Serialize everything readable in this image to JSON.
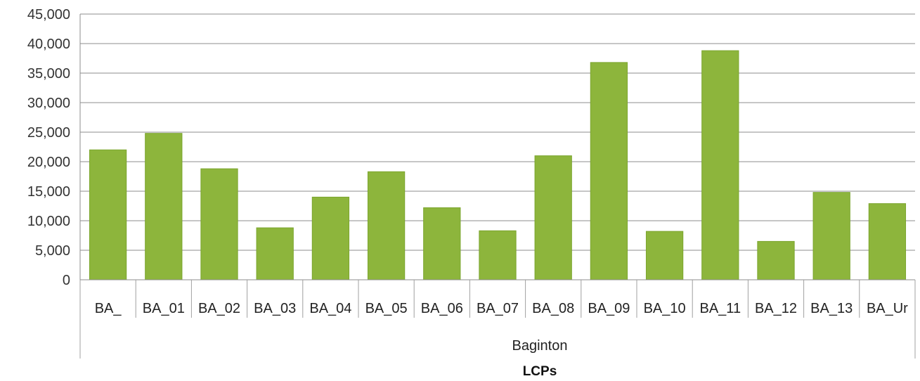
{
  "chart_data": {
    "type": "bar",
    "title": "",
    "xlabel": "LCPs",
    "ylabel": "",
    "group_label": "Baginton",
    "categories": [
      "BA_",
      "BA_01",
      "BA_02",
      "BA_03",
      "BA_04",
      "BA_05",
      "BA_06",
      "BA_07",
      "BA_08",
      "BA_09",
      "BA_10",
      "BA_11",
      "BA_12",
      "BA_13",
      "BA_Ur"
    ],
    "values": [
      22000,
      24800,
      18800,
      8800,
      14000,
      18300,
      12200,
      8300,
      21000,
      36800,
      8200,
      38800,
      6500,
      14800,
      12900
    ],
    "ylim": [
      0,
      45000
    ],
    "yticks": [
      0,
      5000,
      10000,
      15000,
      20000,
      25000,
      30000,
      35000,
      40000,
      45000
    ],
    "ytick_labels": [
      "0",
      "5,000",
      "10,000",
      "15,000",
      "20,000",
      "25,000",
      "30,000",
      "35,000",
      "40,000",
      "45,000"
    ],
    "grid": true,
    "legend": "none",
    "bar_color": "#8db53c",
    "bar_edge_color": "#7ba52e"
  }
}
